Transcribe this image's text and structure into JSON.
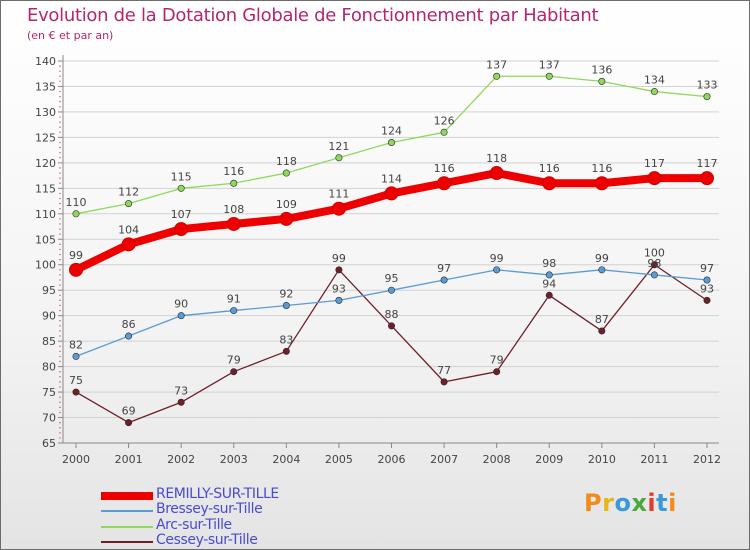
{
  "chart_data": {
    "type": "line",
    "title": "Evolution de la Dotation Globale de Fonctionnement par Habitant",
    "subtitle": "(en € et par an)",
    "xlabel": "",
    "ylabel": "",
    "ylim": [
      65,
      140
    ],
    "yticks": [
      65,
      70,
      75,
      80,
      85,
      90,
      95,
      100,
      105,
      110,
      115,
      120,
      125,
      130,
      135,
      140
    ],
    "grid": "horizontal",
    "legend": "bottom-left",
    "categories": [
      "2000",
      "2001",
      "2002",
      "2003",
      "2004",
      "2005",
      "2006",
      "2007",
      "2008",
      "2009",
      "2010",
      "2011",
      "2012"
    ],
    "series": [
      {
        "name": "REMILLY-SUR-TILLE",
        "color": "#ee0000",
        "values": [
          99,
          104,
          107,
          108,
          109,
          111,
          114,
          116,
          118,
          116,
          116,
          117,
          117
        ]
      },
      {
        "name": "Bressey-sur-Tille",
        "color": "#5b9bd5",
        "values": [
          82,
          86,
          90,
          91,
          92,
          93,
          95,
          97,
          99,
          98,
          99,
          98,
          97
        ]
      },
      {
        "name": "Arc-sur-Tille",
        "color": "#8fd85c",
        "values": [
          110,
          112,
          115,
          116,
          118,
          121,
          124,
          126,
          137,
          137,
          136,
          134,
          133
        ]
      },
      {
        "name": "Cessey-sur-Tille",
        "color": "#6e1f2a",
        "values": [
          75,
          69,
          73,
          79,
          83,
          99,
          88,
          77,
          79,
          94,
          87,
          100,
          93
        ]
      }
    ]
  },
  "branding": {
    "logo_text": "Proxiti",
    "logo_colors": [
      "#f28b1c",
      "#e8b51a",
      "#3a9ad9",
      "#4aa83a",
      "#e23b2f",
      "#3a9ad9",
      "#f28b1c"
    ]
  }
}
